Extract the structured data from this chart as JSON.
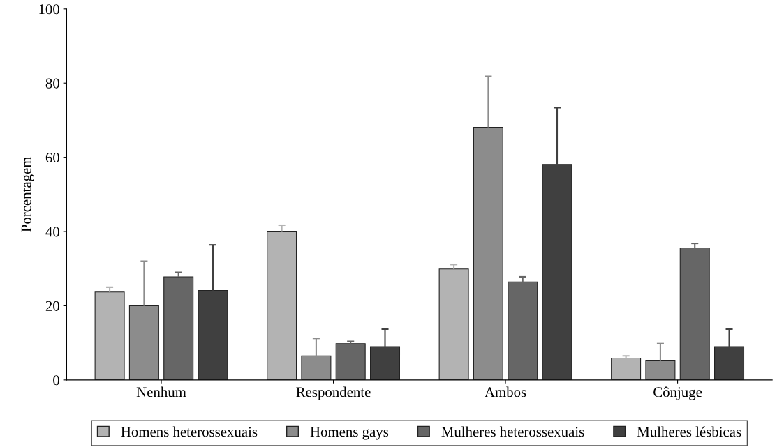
{
  "chart_data": {
    "type": "bar",
    "ylabel": "Porcentagem",
    "categories": [
      "Nenhum",
      "Respondente",
      "Ambos",
      "Cônjuge"
    ],
    "series": [
      {
        "name": "Homens heterossexuais",
        "color": "#b3b3b3",
        "values": [
          23.7,
          40.1,
          29.9,
          5.9
        ],
        "errors": [
          [
            23.7,
            25.0
          ],
          [
            40.1,
            41.7
          ],
          [
            29.9,
            31.1
          ],
          [
            5.9,
            6.5
          ]
        ]
      },
      {
        "name": "Homens gays",
        "color": "#8c8c8c",
        "values": [
          20.0,
          6.5,
          68.1,
          5.3
        ],
        "errors": [
          [
            20.0,
            32.0
          ],
          [
            6.5,
            11.2
          ],
          [
            68.1,
            81.8
          ],
          [
            5.3,
            9.8
          ]
        ]
      },
      {
        "name": "Mulheres heterossexuais",
        "color": "#666666",
        "values": [
          27.8,
          9.8,
          26.4,
          35.6
        ],
        "errors": [
          [
            27.8,
            29.0
          ],
          [
            9.8,
            10.4
          ],
          [
            26.4,
            27.8
          ],
          [
            35.6,
            36.8
          ]
        ]
      },
      {
        "name": "Mulheres lésbicas",
        "color": "#404040",
        "values": [
          24.1,
          9.0,
          58.1,
          9.0
        ],
        "errors": [
          [
            24.1,
            36.4
          ],
          [
            9.0,
            13.7
          ],
          [
            58.1,
            73.4
          ],
          [
            9.0,
            13.7
          ]
        ]
      }
    ],
    "ylim": [
      0,
      100
    ],
    "yticks": [
      0,
      20,
      40,
      60,
      80,
      100
    ],
    "grid": false,
    "legend": "bottom"
  }
}
